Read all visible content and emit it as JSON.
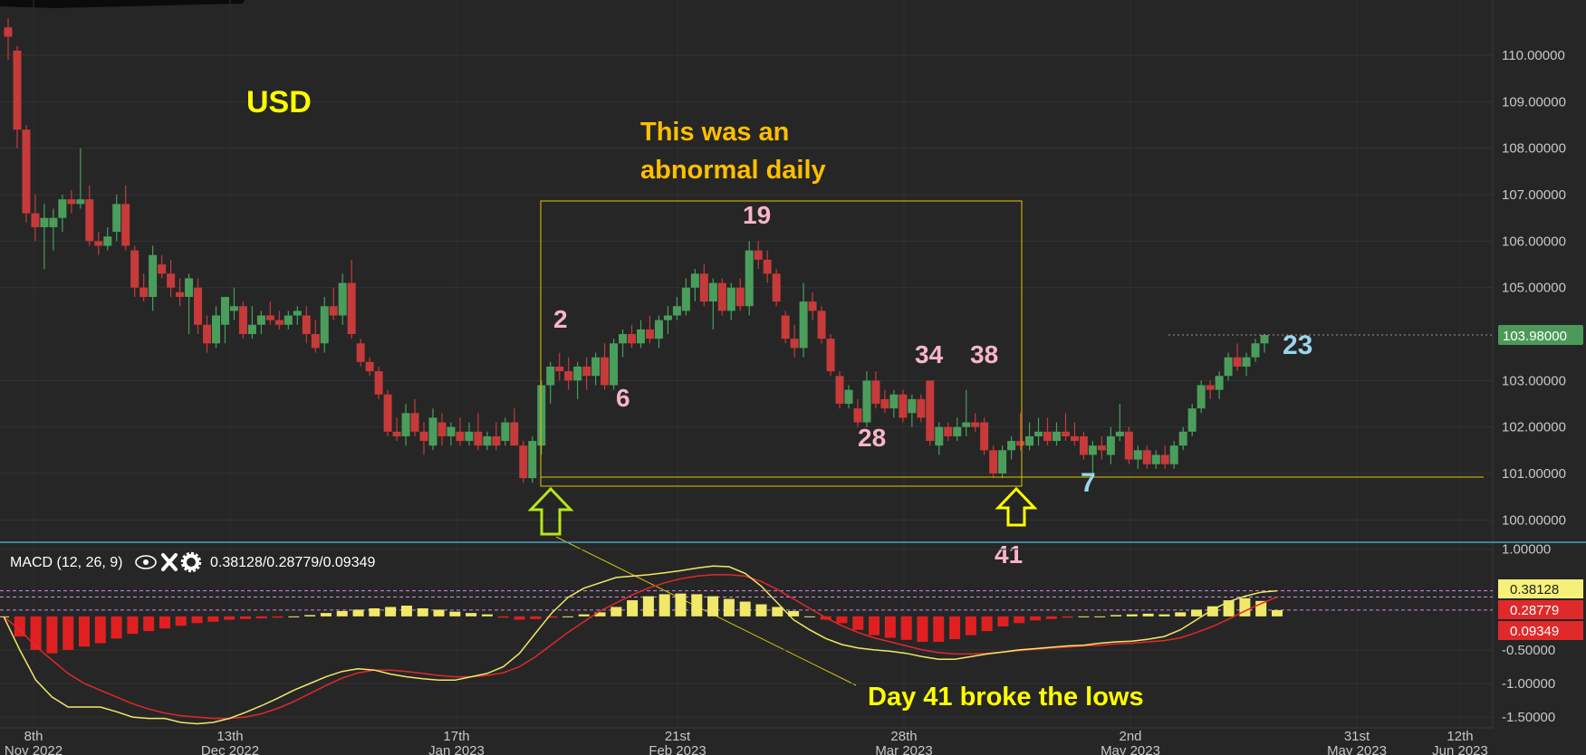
{
  "chart_data": {
    "type": "candlestick",
    "symbol_label": "USD",
    "price_axis": {
      "ticks": [
        "110.00000",
        "109.00000",
        "108.00000",
        "107.00000",
        "106.00000",
        "105.00000",
        "103.00000",
        "102.00000",
        "101.00000",
        "100.00000"
      ],
      "ylim": [
        99.5,
        110.8
      ],
      "last_price": "103.98000"
    },
    "date_axis": [
      {
        "day": "8th",
        "month": "Nov 2022"
      },
      {
        "day": "13th",
        "month": "Dec 2022"
      },
      {
        "day": "17th",
        "month": "Jan 2023"
      },
      {
        "day": "21st",
        "month": "Feb 2023"
      },
      {
        "day": "28th",
        "month": "Mar 2023"
      },
      {
        "day": "2nd",
        "month": "May 2023"
      },
      {
        "day": "31st",
        "month": "May 2023"
      },
      {
        "day": "12th",
        "month": "Jun 2023"
      }
    ],
    "candles_ohlc": [
      [
        110.6,
        110.8,
        109.9,
        110.4
      ],
      [
        110.1,
        110.2,
        108.0,
        108.4
      ],
      [
        108.4,
        108.5,
        106.4,
        106.6
      ],
      [
        106.6,
        107.0,
        106.0,
        106.3
      ],
      [
        106.3,
        106.8,
        105.4,
        106.5
      ],
      [
        106.3,
        106.7,
        105.8,
        106.5
      ],
      [
        106.5,
        107.0,
        106.2,
        106.9
      ],
      [
        106.9,
        107.1,
        106.6,
        106.8
      ],
      [
        106.8,
        108.0,
        106.7,
        106.9
      ],
      [
        106.9,
        107.2,
        105.9,
        106.0
      ],
      [
        106.0,
        106.2,
        105.7,
        105.9
      ],
      [
        105.9,
        106.3,
        105.8,
        106.1
      ],
      [
        106.2,
        107.0,
        106.0,
        106.8
      ],
      [
        106.8,
        107.2,
        105.8,
        105.9
      ],
      [
        105.8,
        105.9,
        104.8,
        105.0
      ],
      [
        105.0,
        105.3,
        104.7,
        104.8
      ],
      [
        104.8,
        105.9,
        104.5,
        105.7
      ],
      [
        105.5,
        105.7,
        105.2,
        105.3
      ],
      [
        105.3,
        105.6,
        104.8,
        105.0
      ],
      [
        104.9,
        105.2,
        104.6,
        104.8
      ],
      [
        104.8,
        105.3,
        104.0,
        105.2
      ],
      [
        105.0,
        105.2,
        104.0,
        104.2
      ],
      [
        104.2,
        104.4,
        103.6,
        103.8
      ],
      [
        103.8,
        104.6,
        103.7,
        104.4
      ],
      [
        104.2,
        104.8,
        103.8,
        104.8
      ],
      [
        104.5,
        105.0,
        104.3,
        104.6
      ],
      [
        104.6,
        104.7,
        103.9,
        104.0
      ],
      [
        104.0,
        104.6,
        103.9,
        104.2
      ],
      [
        104.2,
        104.5,
        104.0,
        104.4
      ],
      [
        104.4,
        104.7,
        104.2,
        104.3
      ],
      [
        104.3,
        104.5,
        104.1,
        104.2
      ],
      [
        104.2,
        104.5,
        104.1,
        104.4
      ],
      [
        104.4,
        104.6,
        104.2,
        104.5
      ],
      [
        104.4,
        104.6,
        103.8,
        104.0
      ],
      [
        104.0,
        104.3,
        103.6,
        103.7
      ],
      [
        103.8,
        104.8,
        103.6,
        104.6
      ],
      [
        104.6,
        105.0,
        104.3,
        104.4
      ],
      [
        104.4,
        105.3,
        104.2,
        105.1
      ],
      [
        105.1,
        105.6,
        103.9,
        104.0
      ],
      [
        103.8,
        103.9,
        103.3,
        103.4
      ],
      [
        103.4,
        103.5,
        103.1,
        103.2
      ],
      [
        103.2,
        103.3,
        102.6,
        102.7
      ],
      [
        102.7,
        102.8,
        101.8,
        101.9
      ],
      [
        101.9,
        102.2,
        101.7,
        101.8
      ],
      [
        101.8,
        102.5,
        101.6,
        102.3
      ],
      [
        102.3,
        102.6,
        101.8,
        101.9
      ],
      [
        101.9,
        102.1,
        101.4,
        101.7
      ],
      [
        101.6,
        102.4,
        101.5,
        102.2
      ],
      [
        102.1,
        102.3,
        101.6,
        101.8
      ],
      [
        101.8,
        102.1,
        101.6,
        102.0
      ],
      [
        101.9,
        102.2,
        101.6,
        101.7
      ],
      [
        101.7,
        102.1,
        101.6,
        101.9
      ],
      [
        101.9,
        102.3,
        101.5,
        101.6
      ],
      [
        101.6,
        101.9,
        101.5,
        101.8
      ],
      [
        101.8,
        102.1,
        101.5,
        101.6
      ],
      [
        101.7,
        102.2,
        101.6,
        102.1
      ],
      [
        102.1,
        102.4,
        101.6,
        101.6
      ],
      [
        101.6,
        101.7,
        100.8,
        100.9
      ],
      [
        100.9,
        101.8,
        100.8,
        101.7
      ],
      [
        101.6,
        103.0,
        101.4,
        102.9
      ],
      [
        102.9,
        103.4,
        102.5,
        103.3
      ],
      [
        103.3,
        103.6,
        103.0,
        103.2
      ],
      [
        103.2,
        103.5,
        102.8,
        103.0
      ],
      [
        103.0,
        103.4,
        102.6,
        103.3
      ],
      [
        103.3,
        103.5,
        102.8,
        103.1
      ],
      [
        103.1,
        103.6,
        102.9,
        103.5
      ],
      [
        103.5,
        103.8,
        102.8,
        102.9
      ],
      [
        102.9,
        103.9,
        102.8,
        103.8
      ],
      [
        103.8,
        104.1,
        103.5,
        104.0
      ],
      [
        104.0,
        104.2,
        103.7,
        103.8
      ],
      [
        103.8,
        104.3,
        103.7,
        104.1
      ],
      [
        104.1,
        104.4,
        103.8,
        103.9
      ],
      [
        103.9,
        104.4,
        103.7,
        104.3
      ],
      [
        104.3,
        104.6,
        104.0,
        104.4
      ],
      [
        104.4,
        104.8,
        104.3,
        104.6
      ],
      [
        104.5,
        105.2,
        104.4,
        105.0
      ],
      [
        105.0,
        105.4,
        104.7,
        105.3
      ],
      [
        105.3,
        105.5,
        104.6,
        104.7
      ],
      [
        104.7,
        105.2,
        104.1,
        105.1
      ],
      [
        105.1,
        105.2,
        104.4,
        104.5
      ],
      [
        104.5,
        105.1,
        104.3,
        105.0
      ],
      [
        105.0,
        105.2,
        104.5,
        104.6
      ],
      [
        104.6,
        106.0,
        104.4,
        105.8
      ],
      [
        105.8,
        106.0,
        105.4,
        105.6
      ],
      [
        105.6,
        105.8,
        105.1,
        105.3
      ],
      [
        105.3,
        105.4,
        104.6,
        104.7
      ],
      [
        104.4,
        104.5,
        103.8,
        103.9
      ],
      [
        103.9,
        104.2,
        103.5,
        103.7
      ],
      [
        103.7,
        105.1,
        103.5,
        104.7
      ],
      [
        104.7,
        104.9,
        104.3,
        104.5
      ],
      [
        104.5,
        104.6,
        103.8,
        103.9
      ],
      [
        103.9,
        104.0,
        103.1,
        103.2
      ],
      [
        103.1,
        103.2,
        102.4,
        102.5
      ],
      [
        102.5,
        102.9,
        102.4,
        102.8
      ],
      [
        102.4,
        102.6,
        102.0,
        102.1
      ],
      [
        102.1,
        103.2,
        102.0,
        103.0
      ],
      [
        103.0,
        103.2,
        102.4,
        102.5
      ],
      [
        102.6,
        102.8,
        102.3,
        102.4
      ],
      [
        102.4,
        102.8,
        102.2,
        102.7
      ],
      [
        102.7,
        102.8,
        102.1,
        102.2
      ],
      [
        102.3,
        102.7,
        102.0,
        102.6
      ],
      [
        102.6,
        102.7,
        102.1,
        102.2
      ],
      [
        103.0,
        103.0,
        101.6,
        101.7
      ],
      [
        101.6,
        102.1,
        101.4,
        102.0
      ],
      [
        102.0,
        102.1,
        101.7,
        101.8
      ],
      [
        101.8,
        102.2,
        101.7,
        102.0
      ],
      [
        102.0,
        102.8,
        101.8,
        102.1
      ],
      [
        102.1,
        102.3,
        101.9,
        102.0
      ],
      [
        102.1,
        102.2,
        101.4,
        101.5
      ],
      [
        101.5,
        101.6,
        100.9,
        101.0
      ],
      [
        101.0,
        101.6,
        100.9,
        101.5
      ],
      [
        101.5,
        101.8,
        101.3,
        101.7
      ],
      [
        101.7,
        102.3,
        101.5,
        101.6
      ],
      [
        101.6,
        102.1,
        101.5,
        101.8
      ],
      [
        101.8,
        102.2,
        101.6,
        101.9
      ],
      [
        101.9,
        102.2,
        101.6,
        101.7
      ],
      [
        101.7,
        102.1,
        101.6,
        101.9
      ],
      [
        101.9,
        102.3,
        101.7,
        101.8
      ],
      [
        101.8,
        102.1,
        101.6,
        101.7
      ],
      [
        101.8,
        101.9,
        101.3,
        101.4
      ],
      [
        101.4,
        101.7,
        101.0,
        101.6
      ],
      [
        101.6,
        101.8,
        101.3,
        101.5
      ],
      [
        101.4,
        102.0,
        101.2,
        101.8
      ],
      [
        101.8,
        102.5,
        101.7,
        101.9
      ],
      [
        101.9,
        102.0,
        101.2,
        101.3
      ],
      [
        101.3,
        101.6,
        101.1,
        101.5
      ],
      [
        101.5,
        101.6,
        101.1,
        101.2
      ],
      [
        101.2,
        101.5,
        101.1,
        101.4
      ],
      [
        101.4,
        101.6,
        101.1,
        101.2
      ],
      [
        101.2,
        101.7,
        101.1,
        101.6
      ],
      [
        101.6,
        102.0,
        101.5,
        101.9
      ],
      [
        101.9,
        102.5,
        101.8,
        102.4
      ],
      [
        102.4,
        103.0,
        102.3,
        102.9
      ],
      [
        102.9,
        103.0,
        102.6,
        102.8
      ],
      [
        102.8,
        103.2,
        102.6,
        103.1
      ],
      [
        103.1,
        103.6,
        103.0,
        103.5
      ],
      [
        103.5,
        103.8,
        103.2,
        103.3
      ],
      [
        103.3,
        103.6,
        103.1,
        103.5
      ],
      [
        103.5,
        103.9,
        103.4,
        103.8
      ],
      [
        103.8,
        104.0,
        103.6,
        103.98
      ]
    ],
    "annotations": {
      "title_text_line1": "This was an",
      "title_text_line2": "abnormal daily",
      "count_2": "2",
      "count_6": "6",
      "count_19": "19",
      "count_28": "28",
      "count_34": "34",
      "count_38": "38",
      "count_41": "41",
      "count_7": "7",
      "count_23": "23",
      "note": "Day 41 broke the lows"
    },
    "macd": {
      "legend": "MACD (12, 26, 9)",
      "values_text": "0.38128/0.28779/0.09349",
      "macd_value": "0.38128",
      "signal_value": "0.28779",
      "histogram_value": "0.09349",
      "ticks": [
        "1.00000",
        "-0.50000",
        "-1.00000",
        "-1.50000"
      ],
      "ylim": [
        -1.62,
        1.05
      ],
      "macd_line": [
        0.0,
        -0.5,
        -0.95,
        -1.2,
        -1.35,
        -1.35,
        -1.35,
        -1.42,
        -1.5,
        -1.52,
        -1.52,
        -1.58,
        -1.6,
        -1.58,
        -1.52,
        -1.43,
        -1.33,
        -1.22,
        -1.1,
        -1.0,
        -0.9,
        -0.82,
        -0.78,
        -0.8,
        -0.86,
        -0.9,
        -0.93,
        -0.95,
        -0.95,
        -0.9,
        -0.85,
        -0.75,
        -0.55,
        -0.25,
        0.05,
        0.28,
        0.42,
        0.5,
        0.58,
        0.6,
        0.62,
        0.65,
        0.68,
        0.72,
        0.75,
        0.74,
        0.64,
        0.45,
        0.2,
        -0.05,
        -0.2,
        -0.33,
        -0.42,
        -0.47,
        -0.5,
        -0.52,
        -0.55,
        -0.6,
        -0.64,
        -0.64,
        -0.6,
        -0.56,
        -0.53,
        -0.5,
        -0.48,
        -0.46,
        -0.44,
        -0.43,
        -0.4,
        -0.38,
        -0.37,
        -0.34,
        -0.3,
        -0.2,
        -0.05,
        0.1,
        0.22,
        0.3,
        0.36,
        0.38128
      ],
      "signal_line": [
        0.0,
        -0.2,
        -0.45,
        -0.65,
        -0.85,
        -1.0,
        -1.1,
        -1.2,
        -1.3,
        -1.38,
        -1.44,
        -1.48,
        -1.5,
        -1.52,
        -1.52,
        -1.5,
        -1.45,
        -1.37,
        -1.27,
        -1.15,
        -1.03,
        -0.92,
        -0.84,
        -0.8,
        -0.8,
        -0.82,
        -0.85,
        -0.88,
        -0.9,
        -0.9,
        -0.88,
        -0.84,
        -0.75,
        -0.6,
        -0.42,
        -0.24,
        -0.08,
        0.08,
        0.2,
        0.32,
        0.42,
        0.5,
        0.56,
        0.6,
        0.62,
        0.62,
        0.6,
        0.52,
        0.4,
        0.26,
        0.12,
        -0.02,
        -0.14,
        -0.24,
        -0.32,
        -0.38,
        -0.44,
        -0.5,
        -0.54,
        -0.56,
        -0.56,
        -0.55,
        -0.53,
        -0.51,
        -0.49,
        -0.47,
        -0.46,
        -0.44,
        -0.43,
        -0.41,
        -0.4,
        -0.38,
        -0.36,
        -0.32,
        -0.24,
        -0.15,
        -0.04,
        0.08,
        0.19,
        0.28779
      ],
      "histogram": [
        0.0,
        -0.3,
        -0.5,
        -0.55,
        -0.5,
        -0.45,
        -0.4,
        -0.33,
        -0.26,
        -0.22,
        -0.18,
        -0.14,
        -0.1,
        -0.08,
        -0.05,
        -0.04,
        -0.03,
        -0.02,
        0.0,
        0.02,
        0.05,
        0.08,
        0.1,
        0.12,
        0.14,
        0.16,
        0.12,
        0.1,
        0.07,
        0.05,
        0.03,
        -0.02,
        -0.05,
        -0.04,
        -0.02,
        0.0,
        0.03,
        0.06,
        0.14,
        0.24,
        0.3,
        0.33,
        0.34,
        0.33,
        0.3,
        0.26,
        0.22,
        0.18,
        0.14,
        0.08,
        0.0,
        -0.05,
        -0.1,
        -0.2,
        -0.28,
        -0.32,
        -0.35,
        -0.38,
        -0.38,
        -0.34,
        -0.28,
        -0.22,
        -0.15,
        -0.1,
        -0.06,
        -0.04,
        -0.02,
        0.0,
        0.0,
        0.02,
        0.03,
        0.04,
        0.03,
        0.06,
        0.1,
        0.15,
        0.24,
        0.27,
        0.23,
        0.09349
      ]
    }
  },
  "colors": {
    "background": "#262626",
    "up_candle": "#4a9e5c",
    "down_candle": "#c73a3a",
    "annotation_yellow": "#ffff00",
    "annotation_pink": "#f9b5c8",
    "annotation_blue": "#9ad4ec",
    "macd_line": "#f0e869",
    "signal_line": "#e0292a",
    "hist_up": "#f0e869",
    "hist_down": "#e02020",
    "last_price_bg": "#4c9a5a"
  }
}
